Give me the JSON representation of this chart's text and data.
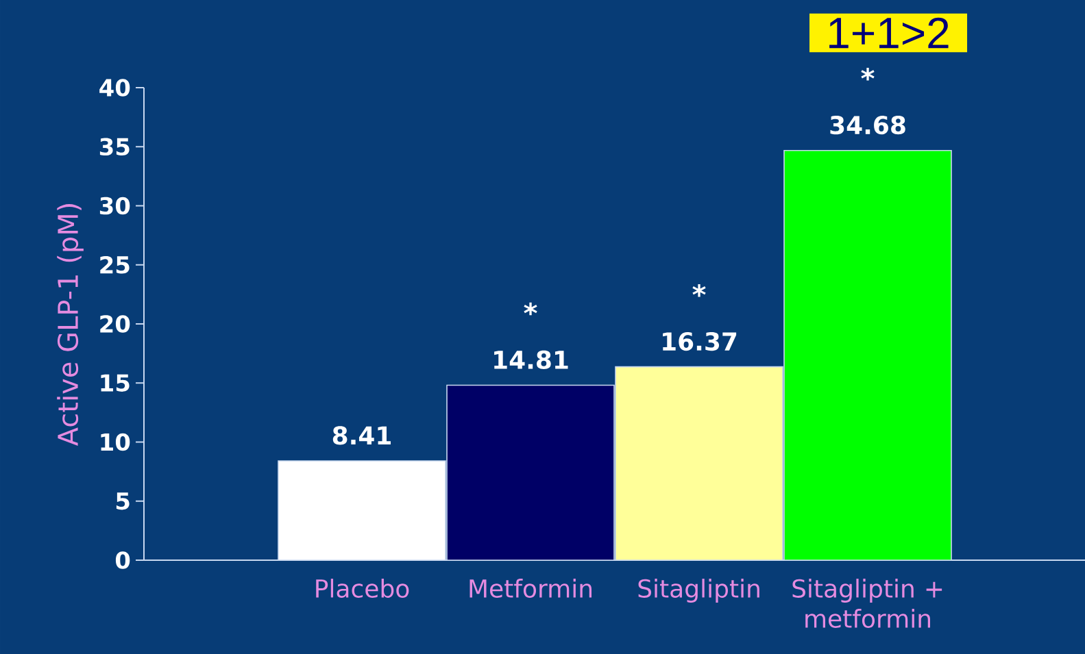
{
  "chart_data": {
    "type": "bar",
    "ylabel": "Active GLP-1 (pM)",
    "categories": [
      "Placebo",
      "Metformin",
      "Sitagliptin",
      "Sitagliptin + metformin"
    ],
    "values": [
      8.41,
      14.81,
      16.37,
      34.68
    ],
    "colors": [
      "#ffffff",
      "#000066",
      "#ffff99",
      "#00ff00"
    ],
    "ylim": [
      0,
      40
    ],
    "yticks": [
      0,
      5,
      10,
      15,
      20,
      25,
      30,
      35,
      40
    ],
    "data_labels": true,
    "grid": false,
    "annotations": [
      "1+1>2",
      "*",
      "*",
      "*"
    ]
  }
}
